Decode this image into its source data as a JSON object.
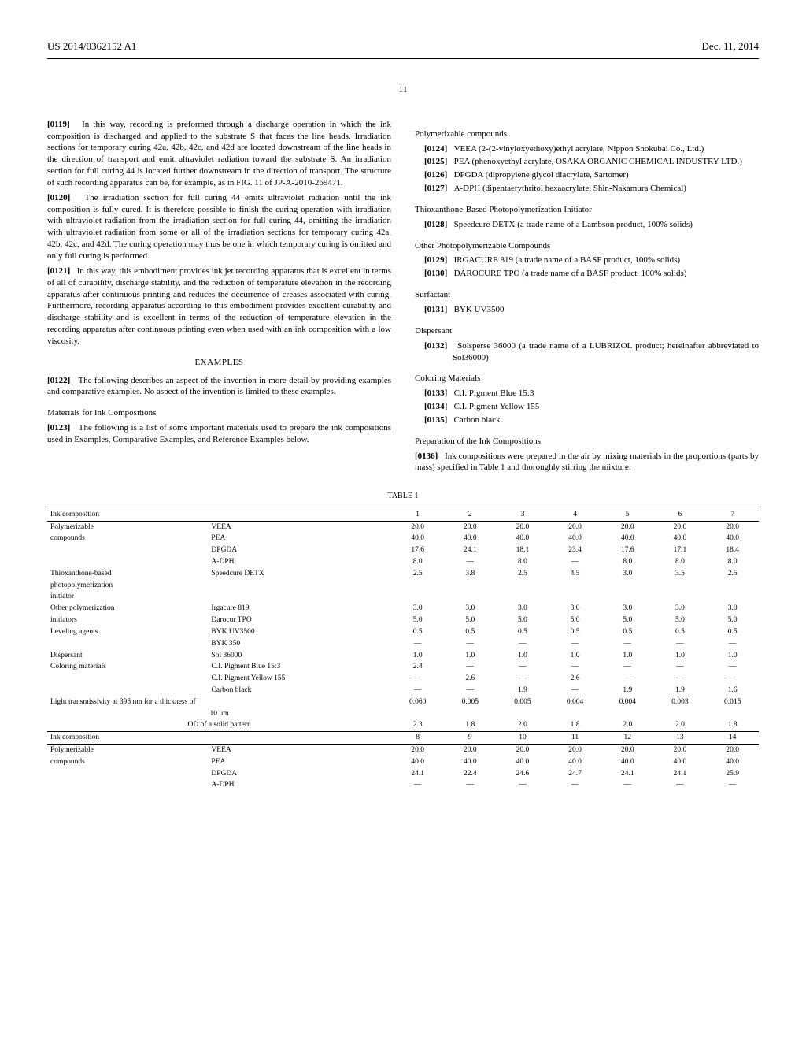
{
  "header": {
    "doc_number": "US 2014/0362152 A1",
    "date": "Dec. 11, 2014",
    "page_number": "11"
  },
  "left_col": {
    "p0119": {
      "ref": "[0119]",
      "text": "In this way, recording is preformed through a discharge operation in which the ink composition is discharged and applied to the substrate S that faces the line heads. Irradiation sections for temporary curing 42a, 42b, 42c, and 42d are located downstream of the line heads in the direction of transport and emit ultraviolet radiation toward the substrate S. An irradiation section for full curing 44 is located further downstream in the direction of transport. The structure of such recording apparatus can be, for example, as in FIG. 11 of JP-A-2010-269471."
    },
    "p0120": {
      "ref": "[0120]",
      "text": "The irradiation section for full curing 44 emits ultraviolet radiation until the ink composition is fully cured. It is therefore possible to finish the curing operation with irradiation with ultraviolet radiation from the irradiation section for full curing 44, omitting the irradiation with ultraviolet radiation from some or all of the irradiation sections for temporary curing 42a, 42b, 42c, and 42d. The curing operation may thus be one in which temporary curing is omitted and only full curing is performed."
    },
    "p0121": {
      "ref": "[0121]",
      "text": "In this way, this embodiment provides ink jet recording apparatus that is excellent in terms of all of curability, discharge stability, and the reduction of temperature elevation in the recording apparatus after continuous printing and reduces the occurrence of creases associated with curing. Furthermore, recording apparatus according to this embodiment provides excellent curability and discharge stability and is excellent in terms of the reduction of temperature elevation in the recording apparatus after continuous printing even when used with an ink composition with a low viscosity."
    },
    "examples_title": "EXAMPLES",
    "p0122": {
      "ref": "[0122]",
      "text": "The following describes an aspect of the invention in more detail by providing examples and comparative examples. No aspect of the invention is limited to these examples."
    },
    "materials_head": "Materials for Ink Compositions",
    "p0123": {
      "ref": "[0123]",
      "text": "The following is a list of some important materials used to prepare the ink compositions used in Examples, Comparative Examples, and Reference Examples below."
    }
  },
  "right_col": {
    "polymerizable_head": "Polymerizable compounds",
    "p0124": {
      "ref": "[0124]",
      "text": "VEEA (2-(2-vinyloxyethoxy)ethyl acrylate, Nippon Shokubai Co., Ltd.)"
    },
    "p0125": {
      "ref": "[0125]",
      "text": "PEA (phenoxyethyl acrylate, OSAKA ORGANIC CHEMICAL INDUSTRY LTD.)"
    },
    "p0126": {
      "ref": "[0126]",
      "text": "DPGDA (dipropylene glycol diacrylate, Sartomer)"
    },
    "p0127": {
      "ref": "[0127]",
      "text": "A-DPH (dipentaerythritol hexaacrylate, Shin-Nakamura Chemical)"
    },
    "thio_head": "Thioxanthone-Based Photopolymerization Initiator",
    "p0128": {
      "ref": "[0128]",
      "text": "Speedcure DETX (a trade name of a Lambson product, 100% solids)"
    },
    "other_head": "Other Photopolymerizable Compounds",
    "p0129": {
      "ref": "[0129]",
      "text": "IRGACURE 819 (a trade name of a BASF product, 100% solids)"
    },
    "p0130": {
      "ref": "[0130]",
      "text": "DAROCURE TPO (a trade name of a BASF product, 100% solids)"
    },
    "surfactant_head": "Surfactant",
    "p0131": {
      "ref": "[0131]",
      "text": "BYK UV3500"
    },
    "dispersant_head": "Dispersant",
    "p0132": {
      "ref": "[0132]",
      "text": "Solsperse 36000 (a trade name of a LUBRIZOL product; hereinafter abbreviated to Sol36000)"
    },
    "coloring_head": "Coloring Materials",
    "p0133": {
      "ref": "[0133]",
      "text": "C.I. Pigment Blue 15:3"
    },
    "p0134": {
      "ref": "[0134]",
      "text": "C.I. Pigment Yellow 155"
    },
    "p0135": {
      "ref": "[0135]",
      "text": "Carbon black"
    },
    "prep_head": "Preparation of the Ink Compositions",
    "p0136": {
      "ref": "[0136]",
      "text": "Ink compositions were prepared in the air by mixing materials in the proportions (parts by mass) specified in Table 1 and thoroughly stirring the mixture."
    }
  },
  "table": {
    "caption": "TABLE 1",
    "header_label": "Ink composition",
    "cols1": [
      "1",
      "2",
      "3",
      "4",
      "5",
      "6",
      "7"
    ],
    "cols2": [
      "8",
      "9",
      "10",
      "11",
      "12",
      "13",
      "14"
    ],
    "rows1": [
      {
        "cat": "Polymerizable",
        "name": "VEEA",
        "v": [
          "20.0",
          "20.0",
          "20.0",
          "20.0",
          "20.0",
          "20.0",
          "20.0"
        ]
      },
      {
        "cat": "compounds",
        "name": "PEA",
        "v": [
          "40.0",
          "40.0",
          "40.0",
          "40.0",
          "40.0",
          "40.0",
          "40.0"
        ]
      },
      {
        "cat": "",
        "name": "DPGDA",
        "v": [
          "17.6",
          "24.1",
          "18.1",
          "23.4",
          "17.6",
          "17.1",
          "18.4"
        ]
      },
      {
        "cat": "",
        "name": "A-DPH",
        "v": [
          "8.0",
          "—",
          "8.0",
          "—",
          "8.0",
          "8.0",
          "8.0"
        ]
      },
      {
        "cat": "Thioxanthone-based",
        "name": "Speedcure DETX",
        "v": [
          "2.5",
          "3.8",
          "2.5",
          "4.5",
          "3.0",
          "3.5",
          "2.5"
        ]
      },
      {
        "cat": "photopolymerization",
        "name": "",
        "v": [
          "",
          "",
          "",
          "",
          "",
          "",
          ""
        ]
      },
      {
        "cat": "initiator",
        "name": "",
        "v": [
          "",
          "",
          "",
          "",
          "",
          "",
          ""
        ]
      },
      {
        "cat": "Other polymerization",
        "name": "Irgacure 819",
        "v": [
          "3.0",
          "3.0",
          "3.0",
          "3.0",
          "3.0",
          "3.0",
          "3.0"
        ]
      },
      {
        "cat": "initiators",
        "name": "Darocur TPO",
        "v": [
          "5.0",
          "5.0",
          "5.0",
          "5.0",
          "5.0",
          "5.0",
          "5.0"
        ]
      },
      {
        "cat": "Leveling agents",
        "name": "BYK UV3500",
        "v": [
          "0.5",
          "0.5",
          "0.5",
          "0.5",
          "0.5",
          "0.5",
          "0.5"
        ]
      },
      {
        "cat": "",
        "name": "BYK 350",
        "v": [
          "—",
          "—",
          "—",
          "—",
          "—",
          "—",
          "—"
        ]
      },
      {
        "cat": "Dispersant",
        "name": "Sol 36000",
        "v": [
          "1.0",
          "1.0",
          "1.0",
          "1.0",
          "1.0",
          "1.0",
          "1.0"
        ]
      },
      {
        "cat": "Coloring materials",
        "name": "C.I. Pigment Blue 15:3",
        "v": [
          "2.4",
          "—",
          "—",
          "—",
          "—",
          "—",
          "—"
        ]
      },
      {
        "cat": "",
        "name": "C.I. Pigment Yellow 155",
        "v": [
          "—",
          "2.6",
          "—",
          "2.6",
          "—",
          "—",
          "—"
        ]
      },
      {
        "cat": "",
        "name": "Carbon black",
        "v": [
          "—",
          "—",
          "1.9",
          "—",
          "1.9",
          "1.9",
          "1.6"
        ]
      }
    ],
    "light_row": {
      "cat": "Light transmissivity at 395 nm for a thickness of",
      "name": "",
      "v": [
        "0.060",
        "0.005",
        "0.005",
        "0.004",
        "0.004",
        "0.003",
        "0.015"
      ]
    },
    "light_row2": "10 μm",
    "od_row": {
      "cat": "OD of a solid pattern",
      "name": "",
      "v": [
        "2.3",
        "1.8",
        "2.0",
        "1.8",
        "2.0",
        "2.0",
        "1.8"
      ]
    },
    "rows2": [
      {
        "cat": "Polymerizable",
        "name": "VEEA",
        "v": [
          "20.0",
          "20.0",
          "20.0",
          "20.0",
          "20.0",
          "20.0",
          "20.0"
        ]
      },
      {
        "cat": "compounds",
        "name": "PEA",
        "v": [
          "40.0",
          "40.0",
          "40.0",
          "40.0",
          "40.0",
          "40.0",
          "40.0"
        ]
      },
      {
        "cat": "",
        "name": "DPGDA",
        "v": [
          "24.1",
          "22.4",
          "24.6",
          "24.7",
          "24.1",
          "24.1",
          "25.9"
        ]
      },
      {
        "cat": "",
        "name": "A-DPH",
        "v": [
          "—",
          "—",
          "—",
          "—",
          "—",
          "—",
          "—"
        ]
      }
    ]
  }
}
